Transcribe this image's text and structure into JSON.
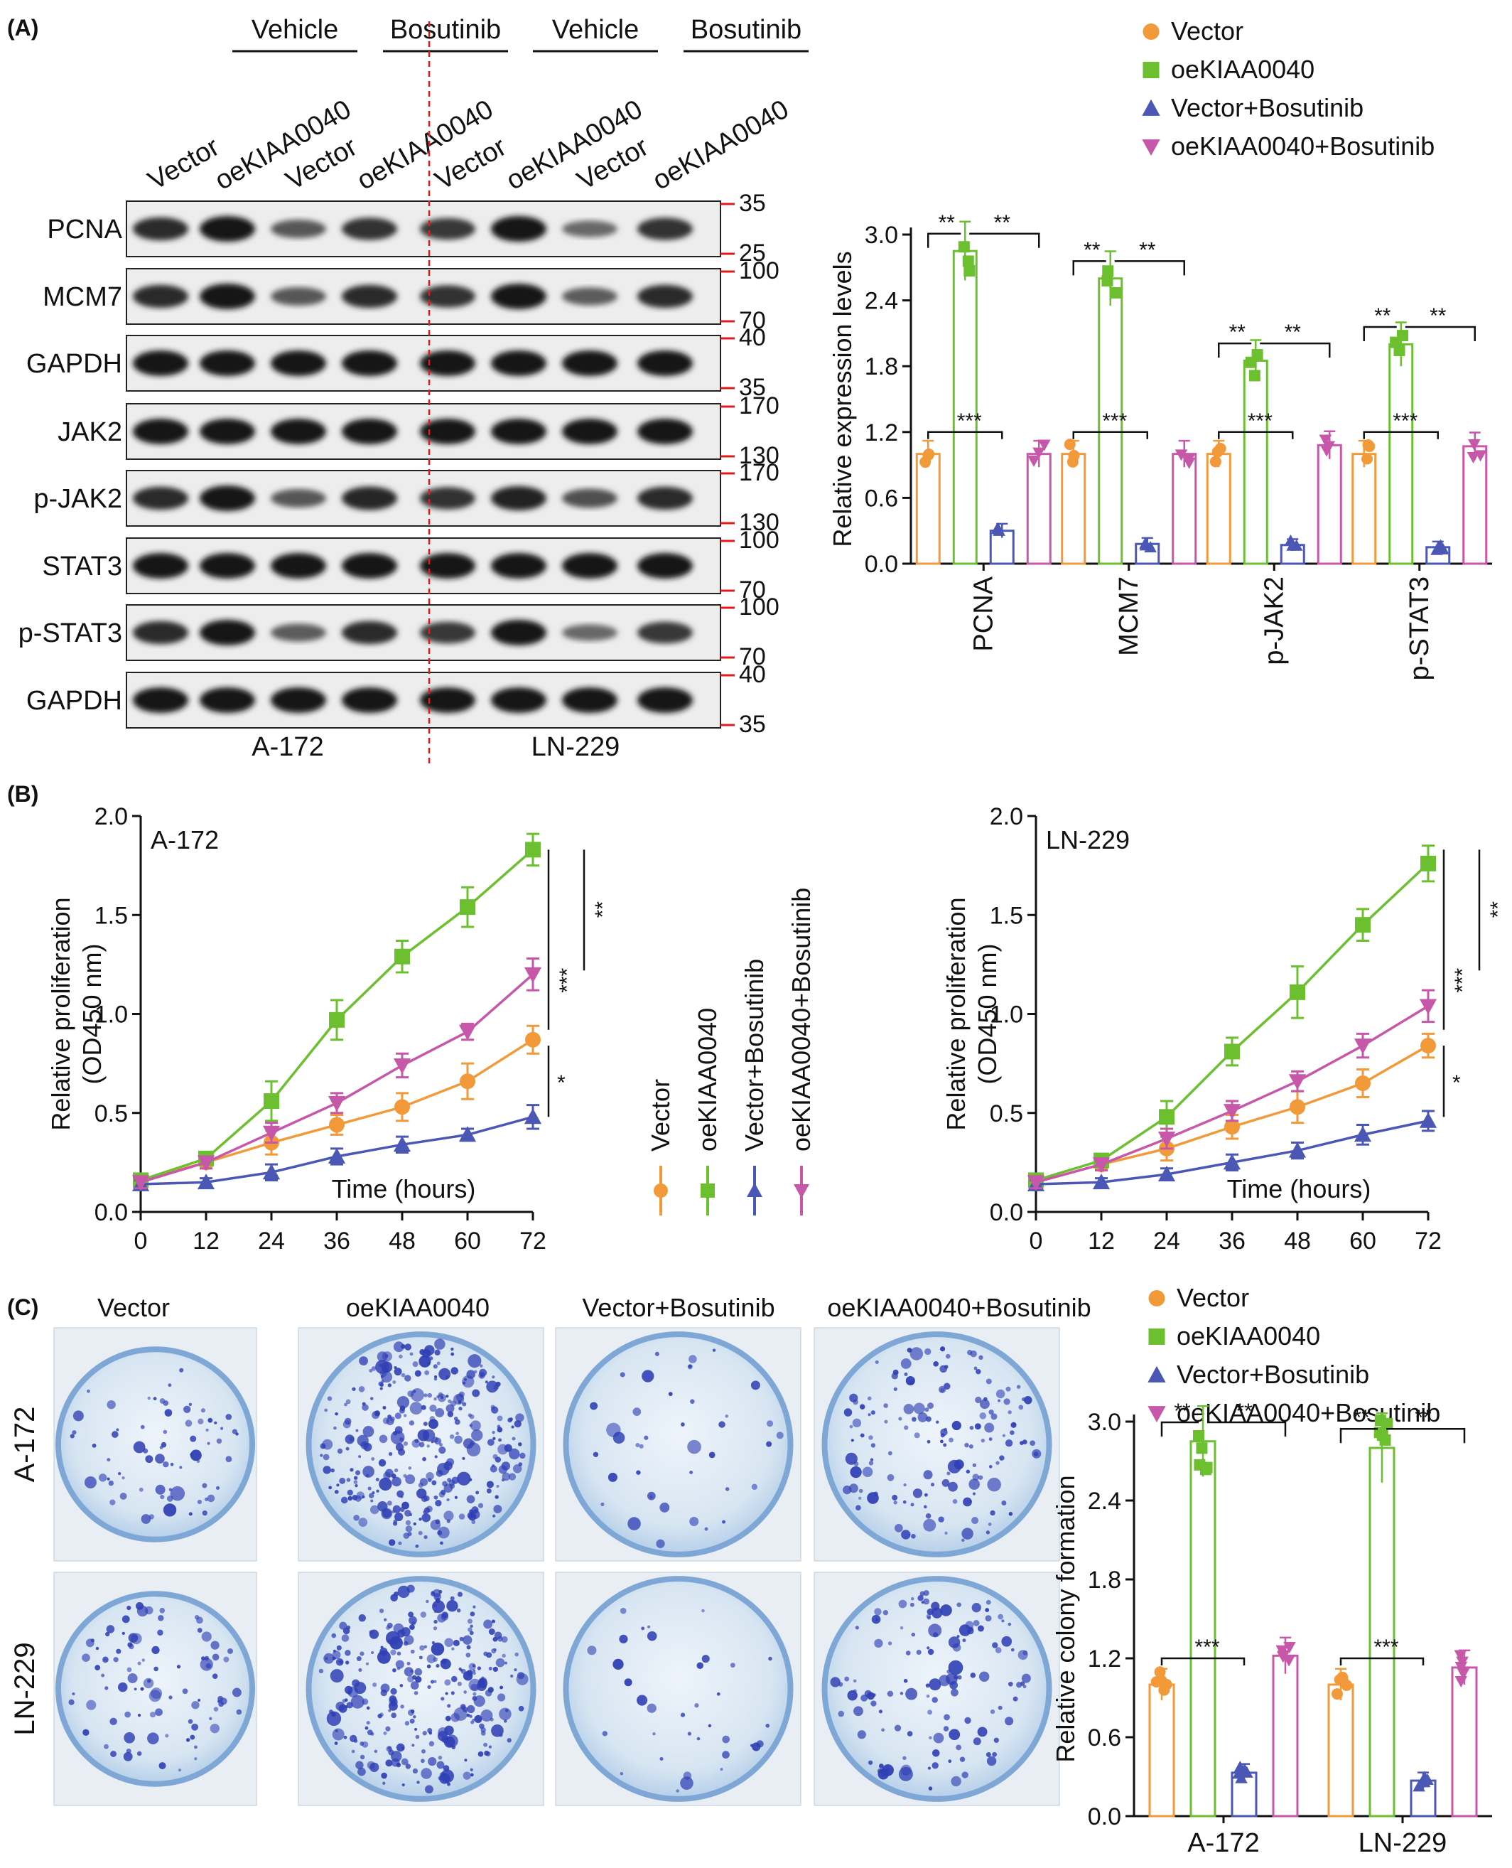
{
  "colors": {
    "vector": "#f29a3a",
    "oe": "#6cbf2f",
    "vbos": "#4a57b5",
    "oebos": "#c657a9",
    "divider": "#e11b1b"
  },
  "legend": {
    "items": [
      {
        "label": "Vector",
        "color": "#f29a3a",
        "marker": "circle"
      },
      {
        "label": "oeKIAA0040",
        "color": "#6cbf2f",
        "marker": "square"
      },
      {
        "label": "Vector+Bosutinib",
        "color": "#4a57b5",
        "marker": "triangle-up"
      },
      {
        "label": "oeKIAA0040+Bosutinib",
        "color": "#c657a9",
        "marker": "triangle-down"
      }
    ]
  },
  "panel_a": {
    "letter": "(A)",
    "treatments": [
      "Vehicle",
      "Bosutinib",
      "Vehicle",
      "Bosutinib"
    ],
    "lanes": [
      "Vector",
      "oeKIAA0040",
      "Vector",
      "oeKIAA0040",
      "Vector",
      "oeKIAA0040",
      "Vector",
      "oeKIAA0040"
    ],
    "cell_lines": [
      "A-172",
      "LN-229"
    ],
    "blots": [
      {
        "name": "PCNA",
        "markers": [
          "35",
          "25"
        ],
        "intensity": [
          0.8,
          1.0,
          0.45,
          0.75,
          0.7,
          1.0,
          0.3,
          0.75
        ]
      },
      {
        "name": "MCM7",
        "markers": [
          "100",
          "70"
        ],
        "intensity": [
          0.8,
          1.0,
          0.45,
          0.8,
          0.75,
          1.0,
          0.4,
          0.8
        ]
      },
      {
        "name": "GAPDH",
        "markers": [
          "40",
          "35"
        ],
        "intensity": [
          1,
          1,
          1,
          1,
          1,
          1,
          1,
          1
        ]
      },
      {
        "name": "JAK2",
        "markers": [
          "170",
          "130"
        ],
        "intensity": [
          1,
          1,
          1,
          1,
          1,
          1,
          1,
          1
        ]
      },
      {
        "name": "p-JAK2",
        "markers": [
          "170",
          "130"
        ],
        "intensity": [
          0.8,
          1.0,
          0.45,
          0.85,
          0.75,
          0.9,
          0.5,
          0.8
        ]
      },
      {
        "name": "STAT3",
        "markers": [
          "100",
          "70"
        ],
        "intensity": [
          1,
          1,
          1,
          1,
          1,
          1,
          1,
          1
        ]
      },
      {
        "name": "p-STAT3",
        "markers": [
          "100",
          "70"
        ],
        "intensity": [
          0.8,
          1.0,
          0.4,
          0.8,
          0.7,
          1.0,
          0.3,
          0.7
        ]
      },
      {
        "name": "GAPDH",
        "markers": [
          "40",
          "35"
        ],
        "intensity": [
          1,
          1,
          1,
          1,
          1,
          1,
          1,
          1
        ]
      }
    ]
  },
  "panel_c": {
    "letter": "(C)",
    "columns": [
      "Vector",
      "oeKIAA0040",
      "Vector+Bosutinib",
      "oeKIAA0040+Bosutinib"
    ],
    "rows": [
      "A-172",
      "LN-229"
    ],
    "density": [
      [
        70,
        320,
        40,
        150
      ],
      [
        90,
        300,
        35,
        130
      ]
    ]
  },
  "chart_data": [
    {
      "type": "bar",
      "id": "expression",
      "ylabel": "Relative expression levels",
      "ylim": [
        0,
        3.0
      ],
      "yticks": [
        "0.0",
        "0.6",
        "1.2",
        "1.8",
        "2.4",
        "3.0"
      ],
      "categories": [
        "PCNA",
        "MCM7",
        "p-JAK2",
        "p-STAT3"
      ],
      "series": [
        {
          "name": "Vector",
          "values": [
            1.0,
            1.0,
            1.0,
            1.0
          ]
        },
        {
          "name": "oeKIAA0040",
          "values": [
            2.85,
            2.6,
            1.85,
            2.0
          ]
        },
        {
          "name": "Vector+Bosutinib",
          "values": [
            0.3,
            0.18,
            0.17,
            0.15
          ]
        },
        {
          "name": "oeKIAA0040+Bosutinib",
          "values": [
            1.0,
            1.0,
            1.08,
            1.07
          ]
        }
      ],
      "significance": [
        "**",
        "**",
        "***"
      ]
    },
    {
      "type": "line",
      "id": "prolif_a172",
      "letter": "(B)",
      "inset_label": "A-172",
      "xlabel": "Time (hours)",
      "ylabel": "Relative proliferation (OD450 nm)",
      "x": [
        0,
        12,
        24,
        36,
        48,
        60,
        72
      ],
      "xlim": [
        0,
        72
      ],
      "ylim": [
        0,
        2.0
      ],
      "yticks": [
        "0.0",
        "0.5",
        "1.0",
        "1.5",
        "2.0"
      ],
      "series": [
        {
          "name": "Vector",
          "values": [
            0.16,
            0.25,
            0.35,
            0.44,
            0.53,
            0.66,
            0.87
          ],
          "err": [
            0.03,
            0.03,
            0.06,
            0.05,
            0.07,
            0.09,
            0.07
          ]
        },
        {
          "name": "oeKIAA0040",
          "values": [
            0.16,
            0.27,
            0.56,
            0.97,
            1.29,
            1.54,
            1.83
          ],
          "err": [
            0.03,
            0.03,
            0.1,
            0.1,
            0.08,
            0.1,
            0.08
          ]
        },
        {
          "name": "Vector+Bosutinib",
          "values": [
            0.14,
            0.15,
            0.2,
            0.28,
            0.34,
            0.39,
            0.48
          ],
          "err": [
            0.02,
            0.02,
            0.04,
            0.04,
            0.04,
            0.03,
            0.06
          ]
        },
        {
          "name": "oeKIAA0040+Bosutinib",
          "values": [
            0.15,
            0.25,
            0.4,
            0.55,
            0.74,
            0.91,
            1.2
          ],
          "err": [
            0.03,
            0.03,
            0.05,
            0.05,
            0.06,
            0.04,
            0.08
          ]
        }
      ],
      "significance": [
        "***",
        "**",
        "*"
      ]
    },
    {
      "type": "line",
      "id": "prolif_ln229",
      "inset_label": "LN-229",
      "xlabel": "Time (hours)",
      "ylabel": "Relative proliferation (OD450 nm)",
      "x": [
        0,
        12,
        24,
        36,
        48,
        60,
        72
      ],
      "xlim": [
        0,
        72
      ],
      "ylim": [
        0,
        2.0
      ],
      "yticks": [
        "0.0",
        "0.5",
        "1.0",
        "1.5",
        "2.0"
      ],
      "series": [
        {
          "name": "Vector",
          "values": [
            0.15,
            0.24,
            0.32,
            0.43,
            0.53,
            0.65,
            0.84
          ],
          "err": [
            0.03,
            0.03,
            0.06,
            0.06,
            0.08,
            0.07,
            0.06
          ]
        },
        {
          "name": "oeKIAA0040",
          "values": [
            0.16,
            0.26,
            0.48,
            0.81,
            1.11,
            1.45,
            1.76
          ],
          "err": [
            0.03,
            0.03,
            0.08,
            0.07,
            0.13,
            0.08,
            0.09
          ]
        },
        {
          "name": "Vector+Bosutinib",
          "values": [
            0.14,
            0.15,
            0.19,
            0.25,
            0.31,
            0.39,
            0.46
          ],
          "err": [
            0.02,
            0.02,
            0.03,
            0.04,
            0.04,
            0.05,
            0.05
          ]
        },
        {
          "name": "oeKIAA0040+Bosutinib",
          "values": [
            0.15,
            0.24,
            0.37,
            0.51,
            0.66,
            0.84,
            1.04
          ],
          "err": [
            0.03,
            0.03,
            0.05,
            0.05,
            0.05,
            0.06,
            0.08
          ]
        }
      ],
      "significance": [
        "***",
        "**",
        "*"
      ]
    },
    {
      "type": "bar",
      "id": "colony",
      "ylabel": "Relative colony formation",
      "ylim": [
        0,
        3.0
      ],
      "yticks": [
        "0.0",
        "0.6",
        "1.2",
        "1.8",
        "2.4",
        "3.0"
      ],
      "categories": [
        "A-172",
        "LN-229"
      ],
      "series": [
        {
          "name": "Vector",
          "values": [
            1.0,
            1.0
          ]
        },
        {
          "name": "oeKIAA0040",
          "values": [
            2.85,
            2.8
          ]
        },
        {
          "name": "Vector+Bosutinib",
          "values": [
            0.33,
            0.27
          ]
        },
        {
          "name": "oeKIAA0040+Bosutinib",
          "values": [
            1.22,
            1.13
          ]
        }
      ],
      "significance": [
        "**",
        "**",
        "***"
      ]
    }
  ]
}
